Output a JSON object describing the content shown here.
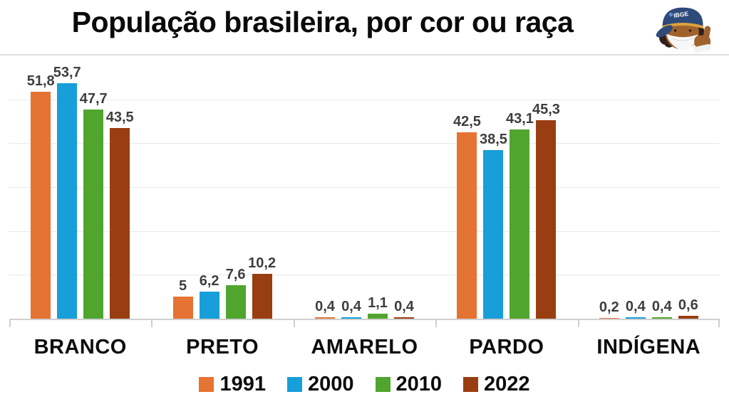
{
  "header": {
    "title": "População brasileira, por cor ou raça"
  },
  "mascot": {
    "name": "ibge-mascot",
    "cap_text": "IBGE"
  },
  "chart_data": {
    "type": "bar",
    "title": "População brasileira, por cor ou raça",
    "categories": [
      "BRANCO",
      "PRETO",
      "AMARELO",
      "PARDO",
      "INDÍGENA"
    ],
    "series": [
      {
        "name": "1991",
        "color": "#E57333",
        "values": [
          51.8,
          5,
          0.4,
          42.5,
          0.2
        ],
        "labels": [
          "51,8",
          "5",
          "0,4",
          "42,5",
          "0,2"
        ]
      },
      {
        "name": "2000",
        "color": "#189ED9",
        "values": [
          53.7,
          6.2,
          0.4,
          38.5,
          0.4
        ],
        "labels": [
          "53,7",
          "6,2",
          "0,4",
          "38,5",
          "0,4"
        ]
      },
      {
        "name": "2010",
        "color": "#50A52F",
        "values": [
          47.7,
          7.6,
          1.1,
          43.1,
          0.4
        ],
        "labels": [
          "47,7",
          "7,6",
          "1,1",
          "43,1",
          "0,4"
        ]
      },
      {
        "name": "2022",
        "color": "#993E11",
        "values": [
          43.5,
          10.2,
          0.4,
          45.3,
          0.6
        ],
        "labels": [
          "43,5",
          "10,2",
          "0,4",
          "45,3",
          "0,6"
        ]
      }
    ],
    "xlabel": "",
    "ylabel": "",
    "ylim": [
      0,
      60
    ],
    "grid_step": 10,
    "grid": "horizontal-only",
    "y_axis_labels_visible": false,
    "value_labels_visible": true,
    "decimal_separator": "comma",
    "legend_position": "bottom"
  },
  "style": {
    "background": "#FFFFFF",
    "grid_color": "#E9E9E9",
    "axis_color": "#CFCFCF",
    "value_label_color": "#3E3E3E",
    "category_label_color": "#0D0D0D",
    "title_color": "#0A0A0A"
  }
}
